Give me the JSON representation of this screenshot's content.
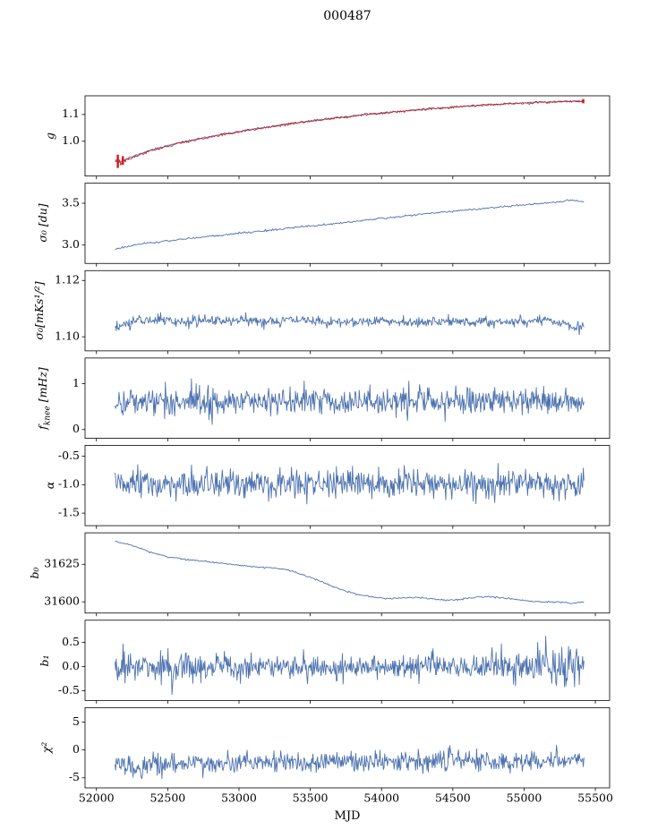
{
  "chart_data": {
    "type": "line",
    "title": "000487",
    "xlabel": "MJD",
    "grid": false,
    "legend": "none",
    "line_color": "#4c72b0",
    "overlay_color": "#cc2222",
    "x_range": [
      51920,
      55600
    ],
    "x_data_range": [
      52130,
      55420
    ],
    "x_ticks": [
      52000,
      52500,
      53000,
      53500,
      54000,
      54500,
      55000,
      55500
    ],
    "x_tick_labels": [
      "52000",
      "52500",
      "53000",
      "53500",
      "54000",
      "54500",
      "55000",
      "55500"
    ],
    "panels": [
      {
        "name": "g",
        "ylabel_main": "g",
        "ylim": [
          0.87,
          1.17
        ],
        "yticks": [
          1.0,
          1.1
        ],
        "ytick_labels": [
          "1.0",
          "1.1"
        ],
        "series": [
          {
            "name": "gain-blue",
            "color": "#4c72b0",
            "seed": 11,
            "samples": 500,
            "noise": [
              [
                52130,
                0.004
              ],
              [
                52250,
                0.0015
              ],
              [
                55420,
                0.0015
              ]
            ],
            "trend": [
              [
                52130,
                0.928
              ],
              [
                52170,
                0.923
              ],
              [
                52220,
                0.936
              ],
              [
                52350,
                0.962
              ],
              [
                52500,
                0.985
              ],
              [
                52700,
                1.008
              ],
              [
                52900,
                1.028
              ],
              [
                53100,
                1.045
              ],
              [
                53300,
                1.061
              ],
              [
                53500,
                1.076
              ],
              [
                53700,
                1.089
              ],
              [
                53900,
                1.101
              ],
              [
                54100,
                1.111
              ],
              [
                54300,
                1.12
              ],
              [
                54500,
                1.128
              ],
              [
                54700,
                1.135
              ],
              [
                54900,
                1.141
              ],
              [
                55100,
                1.146
              ],
              [
                55250,
                1.149
              ],
              [
                55420,
                1.151
              ]
            ]
          },
          {
            "name": "gain-red-overlay",
            "color": "#cc2222",
            "seed": 12,
            "samples": 500,
            "noise": [
              [
                52130,
                0.006
              ],
              [
                52250,
                0.002
              ],
              [
                55420,
                0.002
              ]
            ],
            "trend": [
              [
                52130,
                0.922
              ],
              [
                52170,
                0.918
              ],
              [
                52220,
                0.932
              ],
              [
                52350,
                0.959
              ],
              [
                52500,
                0.982
              ],
              [
                52700,
                1.006
              ],
              [
                52900,
                1.026
              ],
              [
                53100,
                1.044
              ],
              [
                53300,
                1.06
              ],
              [
                53500,
                1.075
              ],
              [
                53700,
                1.088
              ],
              [
                53900,
                1.1
              ],
              [
                54100,
                1.11
              ],
              [
                54300,
                1.119
              ],
              [
                54500,
                1.127
              ],
              [
                54700,
                1.134
              ],
              [
                54900,
                1.14
              ],
              [
                55100,
                1.145
              ],
              [
                55250,
                1.148
              ],
              [
                55420,
                1.15
              ]
            ],
            "errorbars": [
              {
                "x": 52150,
                "lo": 0.9,
                "hi": 0.95
              },
              {
                "x": 52185,
                "lo": 0.912,
                "hi": 0.944
              },
              {
                "x": 55415,
                "lo": 1.142,
                "hi": 1.158
              }
            ]
          }
        ]
      },
      {
        "name": "sigma0_du",
        "ylabel_main": "σ₀ [du]",
        "ylim": [
          2.78,
          3.74
        ],
        "yticks": [
          3.0,
          3.5
        ],
        "ytick_labels": [
          "3.0",
          "3.5"
        ],
        "series": [
          {
            "name": "sigma0-du",
            "color": "#4c72b0",
            "seed": 21,
            "samples": 450,
            "noise": [
              [
                52130,
                0.006
              ],
              [
                55420,
                0.006
              ]
            ],
            "trend": [
              [
                52130,
                2.952
              ],
              [
                52250,
                2.995
              ],
              [
                52400,
                3.03
              ],
              [
                52600,
                3.07
              ],
              [
                52800,
                3.105
              ],
              [
                53000,
                3.14
              ],
              [
                53200,
                3.175
              ],
              [
                53400,
                3.21
              ],
              [
                53600,
                3.245
              ],
              [
                53800,
                3.28
              ],
              [
                54000,
                3.32
              ],
              [
                54200,
                3.355
              ],
              [
                54400,
                3.39
              ],
              [
                54600,
                3.42
              ],
              [
                54800,
                3.45
              ],
              [
                55000,
                3.48
              ],
              [
                55150,
                3.5
              ],
              [
                55300,
                3.53
              ],
              [
                55370,
                3.535
              ],
              [
                55420,
                3.52
              ]
            ]
          }
        ]
      },
      {
        "name": "sigma0_mKs12",
        "ylabel_main": "σ₀[mKs¹/²]",
        "ylim": [
          1.095,
          1.1235
        ],
        "yticks": [
          1.1,
          1.12
        ],
        "ytick_labels": [
          "1.10",
          "1.12"
        ],
        "series": [
          {
            "name": "sigma0-mks",
            "color": "#4c72b0",
            "seed": 31,
            "samples": 700,
            "noise": [
              [
                52130,
                0.0012
              ],
              [
                52300,
                0.0009
              ],
              [
                55300,
                0.0009
              ],
              [
                55420,
                0.0013
              ]
            ],
            "trend": [
              [
                52130,
                1.1028
              ],
              [
                52220,
                1.1048
              ],
              [
                52320,
                1.1062
              ],
              [
                52450,
                1.106
              ],
              [
                52600,
                1.1053
              ],
              [
                52800,
                1.1057
              ],
              [
                53000,
                1.1058
              ],
              [
                53200,
                1.1055
              ],
              [
                53400,
                1.106
              ],
              [
                53600,
                1.1051
              ],
              [
                53800,
                1.1056
              ],
              [
                54000,
                1.1057
              ],
              [
                54200,
                1.1052
              ],
              [
                54400,
                1.1055
              ],
              [
                54600,
                1.1053
              ],
              [
                54800,
                1.1051
              ],
              [
                55000,
                1.1055
              ],
              [
                55150,
                1.106
              ],
              [
                55280,
                1.1052
              ],
              [
                55360,
                1.1035
              ],
              [
                55420,
                1.103
              ]
            ]
          }
        ]
      },
      {
        "name": "f_knee_mHz",
        "ylabel_main": "f",
        "ylabel_sub": "knee",
        "ylabel_rest": " [mHz]",
        "ylim": [
          -0.19,
          1.56
        ],
        "yticks": [
          0,
          1
        ],
        "ytick_labels": [
          "0",
          "1"
        ],
        "series": [
          {
            "name": "fknee",
            "color": "#4c72b0",
            "seed": 41,
            "samples": 700,
            "noise": [
              [
                52130,
                0.15
              ],
              [
                55420,
                0.15
              ]
            ],
            "trend": [
              [
                52130,
                0.6
              ],
              [
                52500,
                0.62
              ],
              [
                53000,
                0.61
              ],
              [
                53500,
                0.63
              ],
              [
                54000,
                0.62
              ],
              [
                54500,
                0.61
              ],
              [
                55000,
                0.63
              ],
              [
                55420,
                0.62
              ]
            ]
          }
        ]
      },
      {
        "name": "alpha",
        "ylabel_main": "α",
        "ylim": [
          -1.72,
          -0.31
        ],
        "yticks": [
          -0.5,
          -1.0,
          -1.5
        ],
        "ytick_labels": [
          "-0.5",
          "-1.0",
          "-1.5"
        ],
        "series": [
          {
            "name": "alpha",
            "color": "#4c72b0",
            "seed": 51,
            "samples": 700,
            "noise": [
              [
                52130,
                0.12
              ],
              [
                55420,
                0.13
              ]
            ],
            "trend": [
              [
                52130,
                -1.0
              ],
              [
                55420,
                -1.0
              ]
            ]
          }
        ]
      },
      {
        "name": "b0",
        "ylabel_main": "b₀",
        "ylim": [
          31592.5,
          31646
        ],
        "yticks": [
          31600,
          31625
        ],
        "ytick_labels": [
          "31600",
          "31625"
        ],
        "series": [
          {
            "name": "b0",
            "color": "#4c72b0",
            "seed": 61,
            "samples": 450,
            "noise": [
              [
                52130,
                0.25
              ],
              [
                55420,
                0.25
              ]
            ],
            "trend": [
              [
                52130,
                31640.5
              ],
              [
                52250,
                31637.5
              ],
              [
                52400,
                31632.5
              ],
              [
                52500,
                31630
              ],
              [
                52650,
                31628
              ],
              [
                52800,
                31626.5
              ],
              [
                52950,
                31625
              ],
              [
                53100,
                31623.5
              ],
              [
                53250,
                31622.5
              ],
              [
                53350,
                31621
              ],
              [
                53450,
                31618
              ],
              [
                53550,
                31614.5
              ],
              [
                53650,
                31610.5
              ],
              [
                53750,
                31607
              ],
              [
                53850,
                31604.5
              ],
              [
                53950,
                31603
              ],
              [
                54050,
                31602
              ],
              [
                54150,
                31602.5
              ],
              [
                54250,
                31603
              ],
              [
                54350,
                31602
              ],
              [
                54450,
                31601
              ],
              [
                54550,
                31601.5
              ],
              [
                54650,
                31603
              ],
              [
                54750,
                31603.5
              ],
              [
                54850,
                31602.5
              ],
              [
                54950,
                31601.5
              ],
              [
                55050,
                31600.5
              ],
              [
                55150,
                31600
              ],
              [
                55250,
                31599.8
              ],
              [
                55340,
                31598.8
              ],
              [
                55420,
                31600.2
              ]
            ]
          }
        ]
      },
      {
        "name": "b1",
        "ylabel_main": "b₁",
        "ylim": [
          -0.7,
          0.96
        ],
        "yticks": [
          0.5,
          0.0,
          -0.5
        ],
        "ytick_labels": [
          "0.5",
          "0.0",
          "-0.5"
        ],
        "series": [
          {
            "name": "b1",
            "color": "#4c72b0",
            "seed": 71,
            "samples": 700,
            "noise": [
              [
                52130,
                0.22
              ],
              [
                52350,
                0.14
              ],
              [
                52600,
                0.2
              ],
              [
                52800,
                0.13
              ],
              [
                53500,
                0.12
              ],
              [
                54700,
                0.12
              ],
              [
                55000,
                0.16
              ],
              [
                55250,
                0.24
              ],
              [
                55420,
                0.22
              ]
            ],
            "trend": [
              [
                52130,
                0.02
              ],
              [
                52400,
                -0.03
              ],
              [
                53000,
                0.0
              ],
              [
                55420,
                0.0
              ]
            ]
          }
        ]
      },
      {
        "name": "chi2",
        "ylabel_main": "χ²",
        "ylim": [
          -6.8,
          7.6
        ],
        "yticks": [
          5,
          0,
          -5
        ],
        "ytick_labels": [
          "5",
          "0",
          "-5"
        ],
        "series": [
          {
            "name": "chi2",
            "color": "#4c72b0",
            "seed": 81,
            "samples": 700,
            "noise": [
              [
                52130,
                0.9
              ],
              [
                55420,
                0.9
              ]
            ],
            "trend": [
              [
                52130,
                -2.4
              ],
              [
                52220,
                -2.9
              ],
              [
                52300,
                -3.3
              ],
              [
                52400,
                -2.5
              ],
              [
                52700,
                -2.4
              ],
              [
                53000,
                -2.2
              ],
              [
                53500,
                -2.1
              ],
              [
                54000,
                -1.9
              ],
              [
                54500,
                -1.9
              ],
              [
                55000,
                -2.0
              ],
              [
                55420,
                -1.9
              ]
            ]
          }
        ]
      }
    ]
  }
}
